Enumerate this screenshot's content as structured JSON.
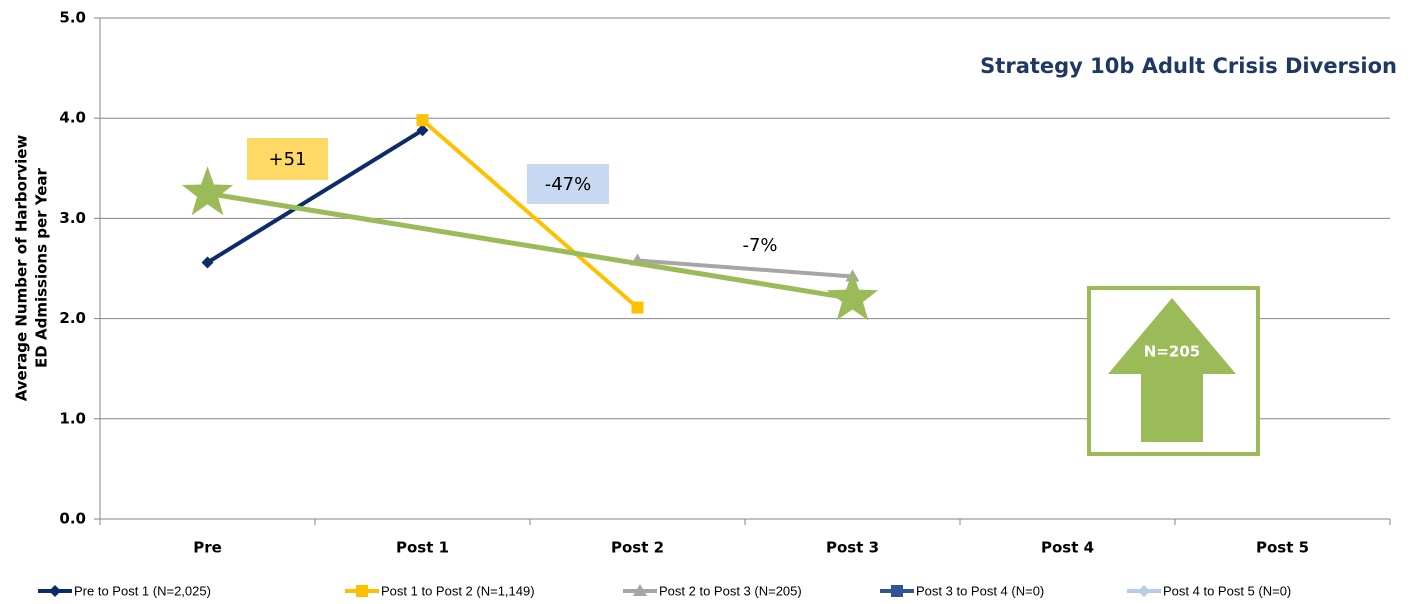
{
  "chart_data": {
    "type": "line",
    "title": "Strategy 10b Adult Crisis Diversion",
    "y_label": [
      "Average Number of Harborview",
      "ED Admissions per Year"
    ],
    "categories": [
      "Pre",
      "Post 1",
      "Post 2",
      "Post 3",
      "Post 4",
      "Post 5"
    ],
    "series": [
      {
        "name": "Pre to Post 1 (N=2,025)",
        "color": "#0d2a6b",
        "marker": "diamond",
        "values": [
          2.56,
          3.88,
          null,
          null,
          null,
          null
        ]
      },
      {
        "name": "Post 1 to Post 2 (N=1,149)",
        "color": "#ffc000",
        "marker": "square",
        "values": [
          null,
          3.98,
          2.11,
          null,
          null,
          null
        ]
      },
      {
        "name": "Post 2 to Post 3 (N=205)",
        "color": "#a6a6a6",
        "marker": "triangle",
        "values": [
          null,
          null,
          2.58,
          2.42,
          null,
          null
        ]
      },
      {
        "name": "Post 3 to Post 4 (N=0)",
        "color": "#2e5597",
        "marker": "square",
        "values": [
          null,
          null,
          null,
          null,
          null,
          null
        ]
      },
      {
        "name": "Post 4 to Post 5 (N=0)",
        "color": "#b8cce4",
        "marker": "diamond",
        "values": [
          null,
          null,
          null,
          null,
          null,
          null
        ]
      }
    ],
    "trend": {
      "color": "#9bbb59",
      "points": [
        {
          "category": "Pre",
          "value": 3.25
        },
        {
          "category": "Post 3",
          "value": 2.2
        }
      ]
    },
    "annotations": [
      {
        "text": "+51",
        "color": "#ffd966"
      },
      {
        "text": "-47%",
        "color": "#c6d9f1"
      },
      {
        "text": "-7%"
      }
    ],
    "badge": {
      "text": "N=205",
      "color": "#9bbb59"
    },
    "ylim": [
      0,
      5
    ],
    "yticks": [
      {
        "value": 0,
        "label": "0.0"
      },
      {
        "value": 1,
        "label": "1.0"
      },
      {
        "value": 2,
        "label": "2.0"
      },
      {
        "value": 3,
        "label": "3.0"
      },
      {
        "value": 4,
        "label": "4.0"
      },
      {
        "value": 5,
        "label": "5.0"
      }
    ],
    "grid": true
  }
}
